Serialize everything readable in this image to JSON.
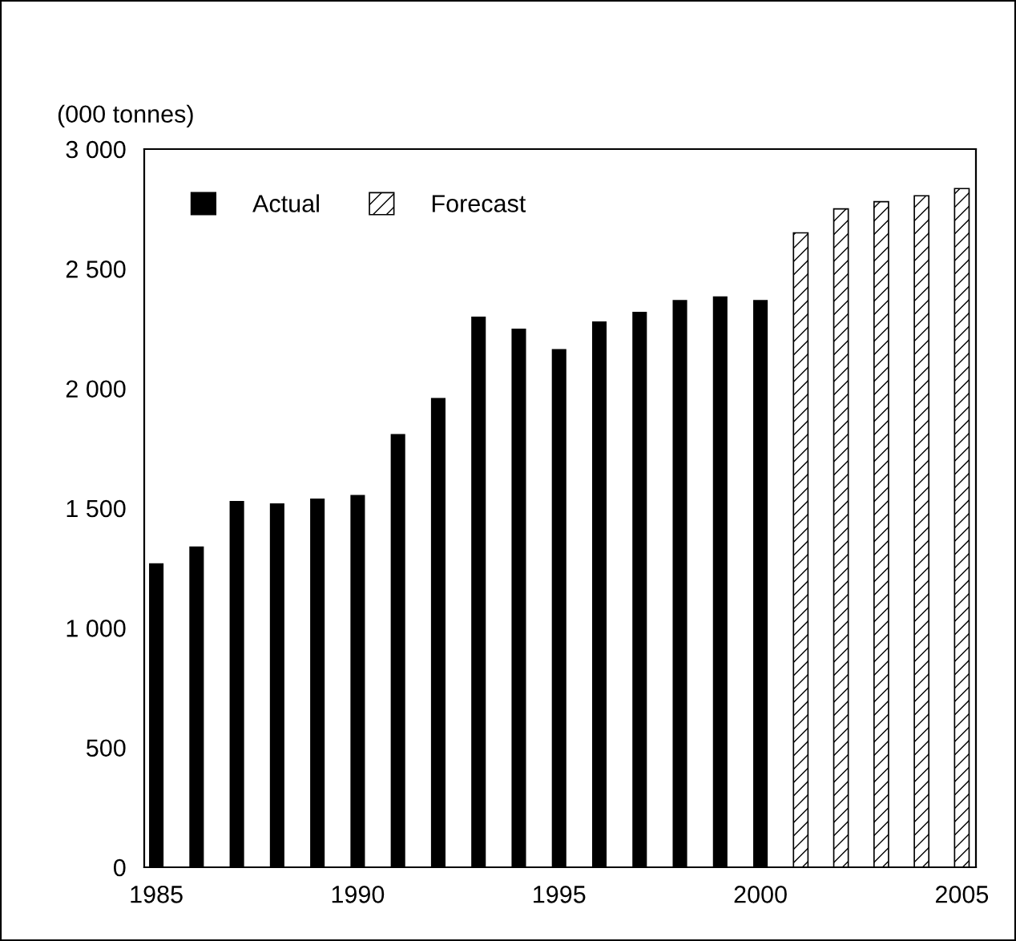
{
  "chart_data": {
    "type": "bar",
    "ylabel": "(000 tonnes)",
    "xlim": [
      1984.7,
      2005.35
    ],
    "xticks": [
      1985,
      1990,
      1995,
      2000,
      2005
    ],
    "ylim": [
      0,
      3000
    ],
    "yticks": [
      0,
      500,
      {
        "value": 1000,
        "label": "1 000"
      },
      {
        "value": 1500,
        "label": "1 500"
      },
      {
        "value": 2000,
        "label": "2 000"
      },
      {
        "value": 2500,
        "label": "2 500"
      },
      {
        "value": 3000,
        "label": "3 000"
      }
    ],
    "grid": false,
    "legend": "top left",
    "series": [
      {
        "name": "Actual",
        "color": "#000000",
        "x": [
          1985,
          1986,
          1987,
          1988,
          1989,
          1990,
          1991,
          1992,
          1993,
          1994,
          1995,
          1996,
          1997,
          1998,
          1999,
          2000
        ],
        "values": [
          1270,
          1340,
          1530,
          1520,
          1540,
          1555,
          1810,
          1960,
          2300,
          2250,
          2165,
          2280,
          2320,
          2370,
          2385,
          2370
        ]
      },
      {
        "name": "Forecast",
        "color": "#000000",
        "x": [
          2001,
          2002,
          2003,
          2004,
          2005
        ],
        "values": [
          2650,
          2750,
          2780,
          2805,
          2835
        ]
      }
    ]
  }
}
